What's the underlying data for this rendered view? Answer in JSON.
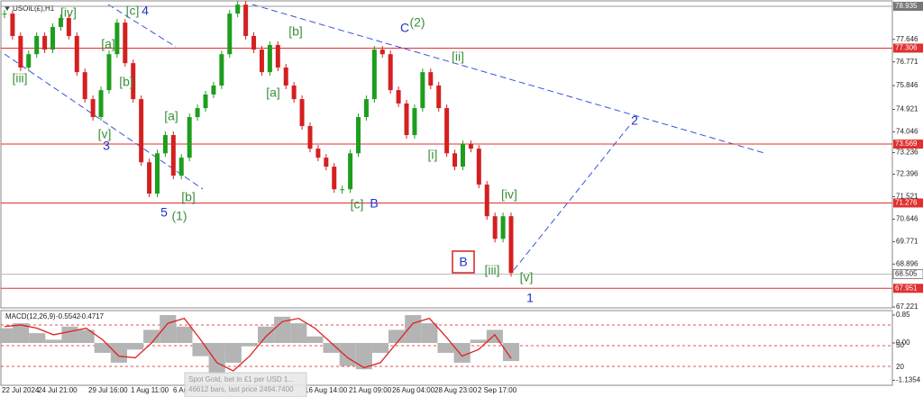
{
  "header": {
    "symbol": "USOIL(£),H1"
  },
  "chart_data": {
    "type": "candlestick",
    "values": [
      78.65,
      77.78,
      76.55,
      77.07,
      77.78,
      77.25,
      78.13,
      78.48,
      77.78,
      76.37,
      75.32,
      74.62,
      75.67,
      77.07,
      78.3,
      76.72,
      75.32,
      72.86,
      71.64,
      73.21,
      73.92,
      72.34,
      73.04,
      74.62,
      74.97,
      75.5,
      75.85,
      77.07,
      78.65,
      79.0,
      77.78,
      77.25,
      76.37,
      77.43,
      76.55,
      75.85,
      75.32,
      74.27,
      73.39,
      73.04,
      72.69,
      71.81,
      71.81,
      73.21,
      74.62,
      75.32,
      77.25,
      77.07,
      75.67,
      75.15,
      73.92,
      74.97,
      76.37,
      75.85,
      74.97,
      73.21,
      72.69,
      73.57,
      73.39,
      71.99,
      70.76,
      69.88,
      70.76,
      68.55
    ],
    "ylim": [
      67.19,
      79.18
    ],
    "yticks": [
      77.646,
      76.771,
      75.846,
      74.921,
      74.046,
      73.236,
      72.396,
      71.521,
      70.646,
      69.771,
      68.896,
      67.221
    ],
    "levels": [
      77.306,
      73.569,
      71.276,
      67.951
    ],
    "level_color": "#e03030",
    "current_price": 68.505,
    "high_price": 78.935,
    "up_color": "#1e9e1e",
    "down_color": "#d42020",
    "x_labels": [
      "22 Jul 2024",
      "24 Jul 21:00",
      "29 Jul 16:00",
      "1 Aug 11:00",
      "6 Au",
      "16 Aug 14:00",
      "21 Aug 09:00",
      "26 Aug 04:00",
      "28 Aug 23:00",
      "2 Sep 17:00"
    ],
    "wave_labels": [
      "[iii]",
      "[iv]",
      "[c]",
      "4",
      "[a]",
      "[b]",
      "[v]",
      "3",
      "[a]",
      "[b]",
      "5",
      "(1)",
      "[b]",
      "[a]",
      "[c]",
      "B",
      "C",
      "(2)",
      "[ii]",
      "[i]",
      "[iv]",
      "[iii]",
      "[v]",
      "1",
      "2",
      "B"
    ],
    "indicator": {
      "title": "MACD(12,26,9)",
      "main_value": -0.5542,
      "signal_value": -0.4717,
      "macd": [
        0.45,
        0.6,
        0.3,
        0.1,
        0.5,
        0.4,
        -0.3,
        -0.6,
        -0.2,
        0.4,
        0.85,
        0.5,
        -0.4,
        -0.95,
        -0.6,
        -0.1,
        0.5,
        0.8,
        0.6,
        0.2,
        -0.3,
        -0.7,
        -0.8,
        -0.3,
        0.4,
        0.85,
        0.6,
        -0.3,
        -0.6,
        0.1,
        0.4,
        -0.55
      ],
      "signal": [
        0.5,
        0.55,
        0.45,
        0.25,
        0.35,
        0.45,
        0.1,
        -0.4,
        -0.45,
        0.0,
        0.6,
        0.75,
        0.1,
        -0.6,
        -0.85,
        -0.4,
        0.2,
        0.65,
        0.75,
        0.45,
        0.0,
        -0.45,
        -0.75,
        -0.6,
        0.0,
        0.6,
        0.75,
        0.2,
        -0.4,
        -0.2,
        0.25,
        -0.47
      ],
      "ylim": [
        -1.288,
        0.987
      ],
      "yticks": [
        0.85,
        {
          "value": 0,
          "label": "0.00"
        },
        -1.1354
      ],
      "histogram_color": "#b4b4b4",
      "signal_color": "#e02020"
    },
    "overlay": {
      "lines": [
        "Spot Gold, bet in £1 per USD 1...",
        "46612 bars, last price 2494.7400"
      ],
      "labels": [
        "50",
        "20"
      ]
    }
  }
}
